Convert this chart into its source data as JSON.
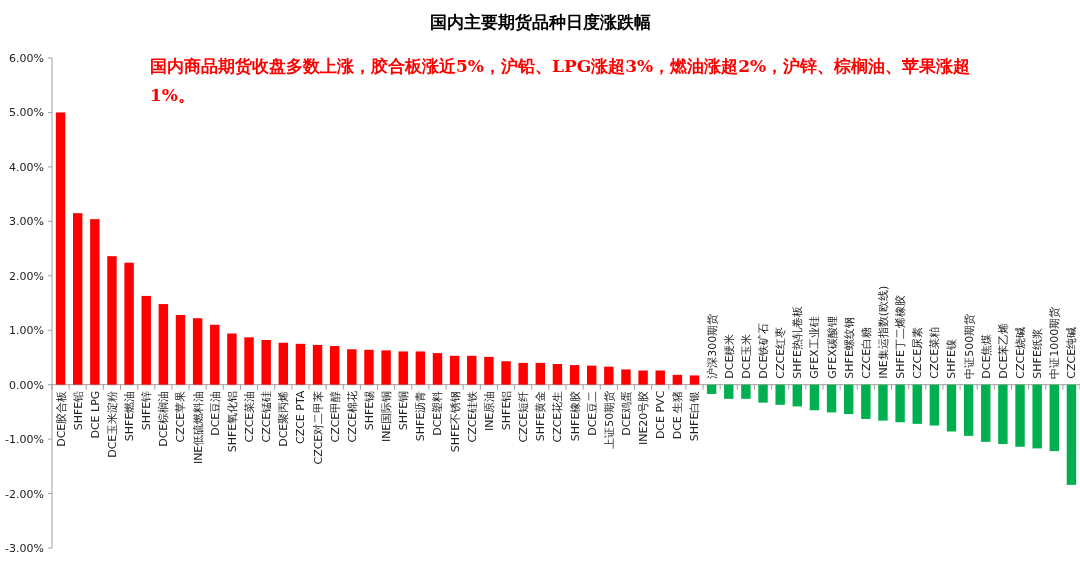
{
  "chart_data": {
    "type": "bar",
    "title": "国内主要期货品种日度涨跌幅",
    "categories": [
      "DCE胶合板",
      "SHFE铅",
      "DCE LPG",
      "DCE玉米淀粉",
      "SHFE燃油",
      "SHFE锌",
      "DCE棕榈油",
      "CZCE苹果",
      "INE低硫燃料油",
      "DCE豆油",
      "SHFE氧化铝",
      "CZCE菜油",
      "CZCE锰硅",
      "DCE聚丙烯",
      "CZCE PTA",
      "CZCE对二甲苯",
      "CZCE甲醇",
      "CZCE棉花",
      "SHFE锡",
      "INE国际铜",
      "SHFE铜",
      "SHFE沥青",
      "DCE塑料",
      "SHFE不锈钢",
      "CZCE硅铁",
      "INE原油",
      "SHFE铝",
      "CZCE短纤",
      "SHFE黄金",
      "CZCE花生",
      "SHFE橡胶",
      "DCE豆二",
      "上证50期货",
      "DCE鸡蛋",
      "INE20号胶",
      "DCE PVC",
      "DCE 生猪",
      "SHFE白银",
      "沪深300期货",
      "DCE粳米",
      "DCE玉米",
      "DCE铁矿石",
      "CZCE红枣",
      "SHFE热轧卷板",
      "GFEX工业硅",
      "GFEX碳酸锂",
      "SHFE螺纹钢",
      "CZCE白糖",
      "INE集运指数(欧线)",
      "SHFE丁二烯橡胶",
      "CZCE尿素",
      "CZCE菜粕",
      "SHFE镍",
      "中证500期货",
      "DCE焦煤",
      "DCE苯乙烯",
      "CZCE烧碱",
      "SHFE纸浆",
      "中证1000期货",
      "CZCE纯碱"
    ],
    "values": [
      5.0,
      3.15,
      3.04,
      2.36,
      2.24,
      1.63,
      1.48,
      1.28,
      1.22,
      1.1,
      0.94,
      0.87,
      0.82,
      0.77,
      0.75,
      0.73,
      0.71,
      0.65,
      0.64,
      0.63,
      0.61,
      0.61,
      0.58,
      0.53,
      0.53,
      0.51,
      0.43,
      0.4,
      0.4,
      0.38,
      0.36,
      0.35,
      0.33,
      0.28,
      0.26,
      0.26,
      0.18,
      0.17,
      -0.17,
      -0.26,
      -0.26,
      -0.33,
      -0.37,
      -0.4,
      -0.47,
      -0.51,
      -0.54,
      -0.63,
      -0.66,
      -0.69,
      -0.72,
      -0.75,
      -0.86,
      -0.94,
      -1.05,
      -1.09,
      -1.14,
      -1.17,
      -1.22,
      -1.84
    ],
    "colors": [
      "#ff0000",
      "#ff0000",
      "#ff0000",
      "#ff0000",
      "#ff0000",
      "#ff0000",
      "#ff0000",
      "#ff0000",
      "#ff0000",
      "#ff0000",
      "#ff0000",
      "#ff0000",
      "#ff0000",
      "#ff0000",
      "#ff0000",
      "#ff0000",
      "#ff0000",
      "#ff0000",
      "#ff0000",
      "#ff0000",
      "#ff0000",
      "#ff0000",
      "#ff0000",
      "#ff0000",
      "#ff0000",
      "#ff0000",
      "#ff0000",
      "#ff0000",
      "#ff0000",
      "#ff0000",
      "#ff0000",
      "#ff0000",
      "#ff0000",
      "#ff0000",
      "#ff0000",
      "#ff0000",
      "#ff0000",
      "#ff0000",
      "#00b050",
      "#00b050",
      "#00b050",
      "#00b050",
      "#00b050",
      "#00b050",
      "#00b050",
      "#00b050",
      "#00b050",
      "#00b050",
      "#00b050",
      "#00b050",
      "#00b050",
      "#00b050",
      "#00b050",
      "#00b050",
      "#00b050",
      "#00b050",
      "#00b050",
      "#00b050",
      "#00b050",
      "#00b050"
    ],
    "ylim": [
      -3,
      6
    ],
    "yticks": [
      {
        "value": -3,
        "label": "-3.00%"
      },
      {
        "value": -2,
        "label": "-2.00%"
      },
      {
        "value": -1,
        "label": "-1.00%"
      },
      {
        "value": 0,
        "label": "0.00%"
      },
      {
        "value": 1,
        "label": "1.00%"
      },
      {
        "value": 2,
        "label": "2.00%"
      },
      {
        "value": 3,
        "label": "3.00%"
      },
      {
        "value": 4,
        "label": "4.00%"
      },
      {
        "value": 5,
        "label": "5.00%"
      },
      {
        "value": 6,
        "label": "6.00%"
      }
    ],
    "annotations": [
      "国内商品期货收盘多数上涨，胶合板涨近5%，沪铅、LPG涨超3%，燃油涨超2%，沪锌、棕榈油、苹果涨超1%。"
    ]
  }
}
